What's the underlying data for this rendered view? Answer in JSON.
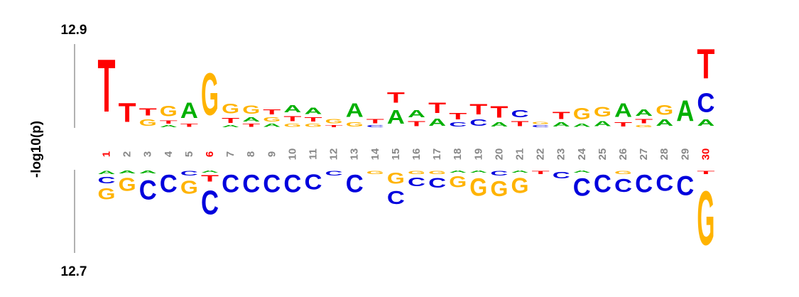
{
  "chart_data": {
    "type": "sequence-logo",
    "ylabel": "-log10(p)",
    "ytop": "12.9",
    "ybottom": "12.7",
    "colors": {
      "A": "#00b000",
      "C": "#0000dd",
      "G": "#ffb300",
      "T": "#ff0000",
      "pos_label": "#888888",
      "pos_label_highlight": "#ff0000",
      "axis": "#666666"
    },
    "highlighted_positions": [
      1,
      6,
      30
    ],
    "positions": [
      {
        "pos": 1,
        "top": [
          [
            "T",
            1.0
          ]
        ],
        "bottom": [
          [
            "A",
            0.06
          ],
          [
            "C",
            0.12
          ],
          [
            "G",
            0.2
          ]
        ]
      },
      {
        "pos": 2,
        "top": [
          [
            "T",
            0.36
          ]
        ],
        "bottom": [
          [
            "A",
            0.05
          ],
          [
            "G",
            0.24
          ]
        ]
      },
      {
        "pos": 3,
        "top": [
          [
            "T",
            0.14
          ],
          [
            "G",
            0.12
          ]
        ],
        "bottom": [
          [
            "A",
            0.05
          ],
          [
            "C",
            0.36
          ]
        ]
      },
      {
        "pos": 4,
        "top": [
          [
            "G",
            0.2
          ],
          [
            "T",
            0.06
          ],
          [
            "A",
            0.04
          ]
        ],
        "bottom": [
          [
            "C",
            0.32
          ]
        ]
      },
      {
        "pos": 5,
        "top": [
          [
            "A",
            0.3
          ],
          [
            "T",
            0.06
          ]
        ],
        "bottom": [
          [
            "C",
            0.08
          ],
          [
            "G",
            0.24
          ]
        ]
      },
      {
        "pos": 6,
        "top": [
          [
            "G",
            0.8
          ]
        ],
        "bottom": [
          [
            "A",
            0.04
          ],
          [
            "T",
            0.12
          ],
          [
            "C",
            0.44
          ]
        ]
      },
      {
        "pos": 7,
        "top": [
          [
            "G",
            0.18
          ],
          [
            "T",
            0.1
          ],
          [
            "A",
            0.04
          ]
        ],
        "bottom": [
          [
            "C",
            0.32
          ]
        ]
      },
      {
        "pos": 8,
        "top": [
          [
            "G",
            0.16
          ],
          [
            "A",
            0.08
          ],
          [
            "T",
            0.06
          ]
        ],
        "bottom": [
          [
            "C",
            0.32
          ]
        ]
      },
      {
        "pos": 9,
        "top": [
          [
            "T",
            0.1
          ],
          [
            "G",
            0.08
          ],
          [
            "A",
            0.06
          ]
        ],
        "bottom": [
          [
            "C",
            0.32
          ]
        ]
      },
      {
        "pos": 10,
        "top": [
          [
            "A",
            0.14
          ],
          [
            "T",
            0.1
          ],
          [
            "G",
            0.06
          ]
        ],
        "bottom": [
          [
            "C",
            0.32
          ]
        ]
      },
      {
        "pos": 11,
        "top": [
          [
            "A",
            0.12
          ],
          [
            "T",
            0.08
          ],
          [
            "G",
            0.06
          ]
        ],
        "bottom": [
          [
            "C",
            0.28
          ]
        ]
      },
      {
        "pos": 12,
        "top": [
          [
            "G",
            0.08
          ],
          [
            "T",
            0.04
          ]
        ],
        "bottom": [
          [
            "C",
            0.08
          ]
        ]
      },
      {
        "pos": 13,
        "top": [
          [
            "A",
            0.26
          ],
          [
            "G",
            0.08
          ]
        ],
        "bottom": [
          [
            "C",
            0.32
          ]
        ]
      },
      {
        "pos": 14,
        "top": [
          [
            "T",
            0.08
          ],
          [
            "C",
            0.04
          ]
        ],
        "bottom": [
          [
            "G",
            0.06
          ]
        ]
      },
      {
        "pos": 15,
        "top": [
          [
            "T",
            0.2
          ],
          [
            "A",
            0.26
          ]
        ],
        "bottom": [
          [
            "G",
            0.2
          ],
          [
            "C",
            0.24
          ]
        ]
      },
      {
        "pos": 16,
        "top": [
          [
            "A",
            0.14
          ],
          [
            "T",
            0.1
          ]
        ],
        "bottom": [
          [
            "G",
            0.06
          ],
          [
            "C",
            0.16
          ]
        ]
      },
      {
        "pos": 17,
        "top": [
          [
            "T",
            0.2
          ],
          [
            "A",
            0.14
          ]
        ],
        "bottom": [
          [
            "G",
            0.06
          ],
          [
            "C",
            0.18
          ]
        ]
      },
      {
        "pos": 18,
        "top": [
          [
            "T",
            0.12
          ],
          [
            "C",
            0.08
          ]
        ],
        "bottom": [
          [
            "A",
            0.04
          ],
          [
            "G",
            0.2
          ]
        ]
      },
      {
        "pos": 19,
        "top": [
          [
            "T",
            0.2
          ],
          [
            "C",
            0.12
          ]
        ],
        "bottom": [
          [
            "A",
            0.04
          ],
          [
            "G",
            0.32
          ]
        ]
      },
      {
        "pos": 20,
        "top": [
          [
            "T",
            0.22
          ],
          [
            "A",
            0.08
          ]
        ],
        "bottom": [
          [
            "C",
            0.08
          ],
          [
            "G",
            0.28
          ]
        ]
      },
      {
        "pos": 21,
        "top": [
          [
            "C",
            0.14
          ],
          [
            "T",
            0.1
          ]
        ],
        "bottom": [
          [
            "A",
            0.04
          ],
          [
            "G",
            0.28
          ]
        ]
      },
      {
        "pos": 22,
        "top": [
          [
            "G",
            0.04
          ],
          [
            "C",
            0.04
          ]
        ],
        "bottom": [
          [
            "T",
            0.06
          ]
        ]
      },
      {
        "pos": 23,
        "top": [
          [
            "T",
            0.14
          ],
          [
            "A",
            0.08
          ]
        ],
        "bottom": [
          [
            "C",
            0.12
          ]
        ]
      },
      {
        "pos": 24,
        "top": [
          [
            "G",
            0.22
          ],
          [
            "A",
            0.06
          ]
        ],
        "bottom": [
          [
            "A",
            0.04
          ],
          [
            "C",
            0.32
          ]
        ]
      },
      {
        "pos": 25,
        "top": [
          [
            "G",
            0.18
          ],
          [
            "A",
            0.1
          ]
        ],
        "bottom": [
          [
            "C",
            0.32
          ]
        ]
      },
      {
        "pos": 26,
        "top": [
          [
            "A",
            0.26
          ],
          [
            "T",
            0.08
          ]
        ],
        "bottom": [
          [
            "G",
            0.06
          ],
          [
            "C",
            0.24
          ]
        ]
      },
      {
        "pos": 27,
        "top": [
          [
            "A",
            0.12
          ],
          [
            "T",
            0.08
          ],
          [
            "G",
            0.04
          ]
        ],
        "bottom": [
          [
            "C",
            0.32
          ]
        ]
      },
      {
        "pos": 28,
        "top": [
          [
            "G",
            0.18
          ],
          [
            "A",
            0.12
          ]
        ],
        "bottom": [
          [
            "C",
            0.3
          ]
        ]
      },
      {
        "pos": 29,
        "top": [
          [
            "A",
            0.4
          ]
        ],
        "bottom": [
          [
            "C",
            0.36
          ]
        ]
      },
      {
        "pos": 30,
        "top": [
          [
            "T",
            0.56
          ],
          [
            "C",
            0.36
          ],
          [
            "A",
            0.12
          ]
        ],
        "bottom": [
          [
            "T",
            0.06
          ],
          [
            "G",
            1.0
          ]
        ]
      }
    ]
  }
}
